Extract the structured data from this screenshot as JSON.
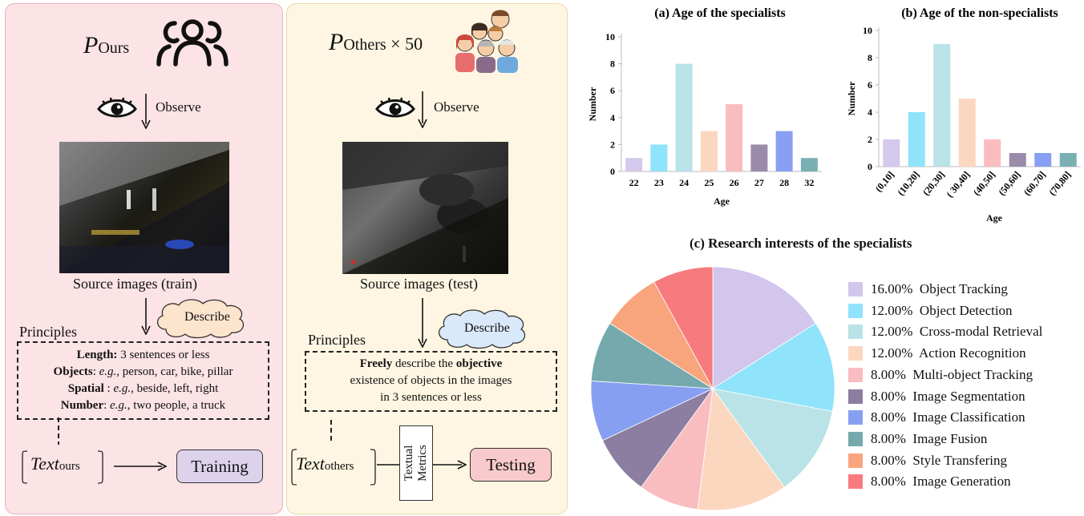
{
  "left_panel": {
    "title_main": "P",
    "title_sub": "Ours",
    "observe": "Observe",
    "caption": "Source images (train)",
    "describe": "Describe",
    "principles": "Principles",
    "rules": [
      {
        "bold": "Length:",
        "text": " 3 sentences or less"
      },
      {
        "bold": "Objects",
        "text": ": ",
        "italic": "e.g.",
        "rest": ", person, car, bike, pillar"
      },
      {
        "bold": "Spatial",
        "text": " : ",
        "italic": "e.g.",
        "rest": ", beside, left, right"
      },
      {
        "bold": "Number",
        "text": ": ",
        "italic": "e.g.",
        "rest": ", two people, a truck"
      }
    ],
    "text_main": "Text",
    "text_sub": "ours",
    "action": "Training"
  },
  "right_panel": {
    "title_main": "P",
    "title_sub": "Others",
    "title_mult": " × 50",
    "observe": "Observe",
    "caption": "Source images (test)",
    "describe": "Describe",
    "principles": "Principles",
    "line1_bold_a": "Freely",
    "line1_mid": " describe the ",
    "line1_bold_b": "objective",
    "line2": "existence of objects in the images",
    "line3": "in 3 sentences or less",
    "text_main": "Text",
    "text_sub": "others",
    "metrics": "Textual Metrics",
    "action": "Testing"
  },
  "chart_data": [
    {
      "type": "bar",
      "title": "(a) Age of the specialists",
      "xlabel": "Age",
      "ylabel": "Number",
      "ylim": [
        0,
        10
      ],
      "yticks": [
        "0",
        "2",
        "4",
        "6",
        "8",
        "10"
      ],
      "categories": [
        "22",
        "23",
        "24",
        "25",
        "26",
        "27",
        "28",
        "32"
      ],
      "values": [
        1,
        2,
        8,
        3,
        5,
        2,
        3,
        1
      ],
      "colors": [
        "#d4c8ec",
        "#8fe3fb",
        "#b9e3e6",
        "#fcd7c0",
        "#f9bcbf",
        "#9a8bab",
        "#889ff3",
        "#7ab0b3"
      ]
    },
    {
      "type": "bar",
      "title": "(b) Age of the non-specialists",
      "xlabel": "Age",
      "ylabel": "Number",
      "ylim": [
        0,
        10
      ],
      "yticks": [
        "0",
        "2",
        "4",
        "6",
        "8",
        "10"
      ],
      "categories": [
        "(0,10]",
        "(10,20]",
        "(20,30]",
        "( 30,40]",
        "(40,50]",
        "(50,60]",
        "(60,70]",
        "(70,80]"
      ],
      "values": [
        2,
        4,
        9,
        5,
        2,
        1,
        1,
        1
      ],
      "colors": [
        "#d4c8ec",
        "#8fe3fb",
        "#b9e3e6",
        "#fcd7c0",
        "#f9bcbf",
        "#9a8bab",
        "#889ff3",
        "#7ab0b3"
      ]
    },
    {
      "type": "pie",
      "title": "(c) Research interests of the specialists",
      "slices": [
        {
          "label": "16.00%  Object Tracking",
          "value": 16,
          "color": "#d2c6ec"
        },
        {
          "label": "12.00%  Object Detection",
          "value": 12,
          "color": "#8fe3fb"
        },
        {
          "label": "12.00%  Cross-modal Retrieval",
          "value": 12,
          "color": "#b9e3e6"
        },
        {
          "label": "12.00%  Action Recognition",
          "value": 12,
          "color": "#fcd7c0"
        },
        {
          "label": "8.00%  Multi-object Tracking",
          "value": 8,
          "color": "#f9bcbf"
        },
        {
          "label": "8.00%  Image Segmentation",
          "value": 8,
          "color": "#8b7ea0"
        },
        {
          "label": "8.00%  Image Classification",
          "value": 8,
          "color": "#879ff1"
        },
        {
          "label": "8.00%  Image Fusion",
          "value": 8,
          "color": "#75a9ad"
        },
        {
          "label": "8.00%  Style Transfering",
          "value": 8,
          "color": "#f8a57e"
        },
        {
          "label": "8.00%  Image Generation",
          "value": 8,
          "color": "#f77a7f"
        }
      ]
    }
  ]
}
